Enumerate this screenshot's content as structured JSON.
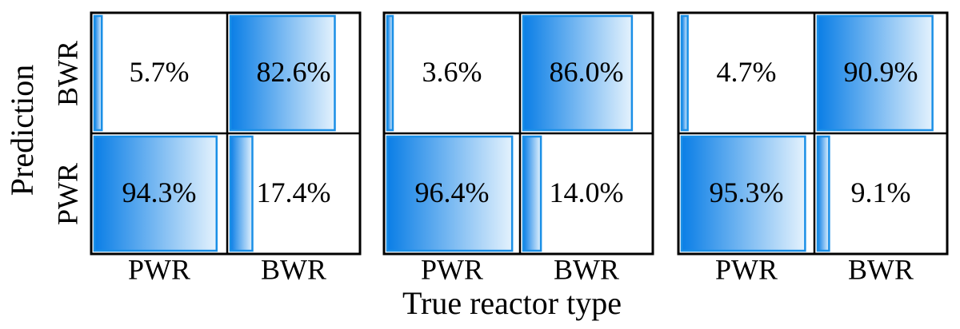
{
  "chart_data": {
    "type": "heatmap",
    "title": "",
    "xlabel": "True reactor type",
    "ylabel": "Prediction",
    "x_categories": [
      "PWR",
      "BWR"
    ],
    "y_categories": [
      "BWR",
      "PWR"
    ],
    "colors": {
      "bar_dark": "#0a7ee6",
      "bar_light": "#e4f2fd",
      "bar_stroke": "#1a8fe6",
      "grid": "#000000"
    },
    "panels": [
      {
        "cells": [
          {
            "pred": "BWR",
            "true": "PWR",
            "value": 5.7,
            "label": "5.7%"
          },
          {
            "pred": "BWR",
            "true": "BWR",
            "value": 82.6,
            "label": "82.6%"
          },
          {
            "pred": "PWR",
            "true": "PWR",
            "value": 94.3,
            "label": "94.3%"
          },
          {
            "pred": "PWR",
            "true": "BWR",
            "value": 17.4,
            "label": "17.4%"
          }
        ]
      },
      {
        "cells": [
          {
            "pred": "BWR",
            "true": "PWR",
            "value": 3.6,
            "label": "3.6%"
          },
          {
            "pred": "BWR",
            "true": "BWR",
            "value": 86.0,
            "label": "86.0%"
          },
          {
            "pred": "PWR",
            "true": "PWR",
            "value": 96.4,
            "label": "96.4%"
          },
          {
            "pred": "PWR",
            "true": "BWR",
            "value": 14.0,
            "label": "14.0%"
          }
        ]
      },
      {
        "cells": [
          {
            "pred": "BWR",
            "true": "PWR",
            "value": 4.7,
            "label": "4.7%"
          },
          {
            "pred": "BWR",
            "true": "BWR",
            "value": 90.9,
            "label": "90.9%"
          },
          {
            "pred": "PWR",
            "true": "PWR",
            "value": 95.3,
            "label": "95.3%"
          },
          {
            "pred": "PWR",
            "true": "BWR",
            "value": 9.1,
            "label": "9.1%"
          }
        ]
      }
    ]
  }
}
